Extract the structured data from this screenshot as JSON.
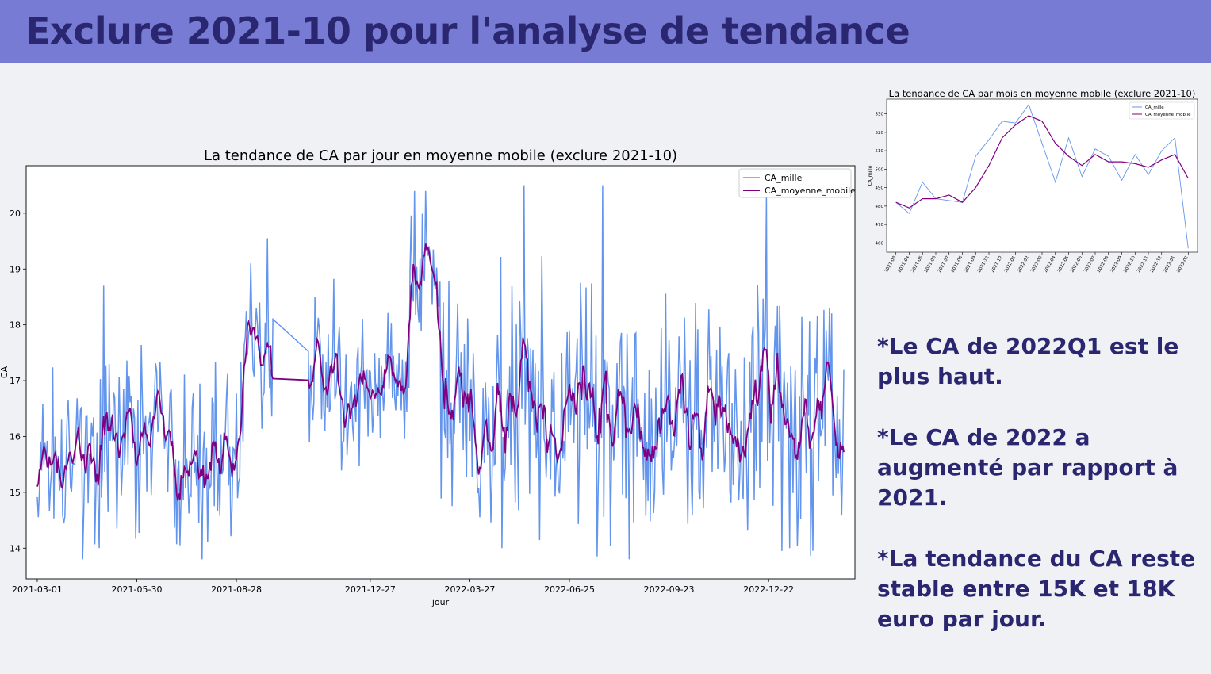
{
  "page": {
    "title": "Exclure 2021-10 pour l'analyse de tendance",
    "banner_color": "#777bd3",
    "title_color": "#2a2770",
    "notes": [
      "*Le CA de 2022Q1 est le plus haut.",
      "*Le CA de 2022 a augmenté par rapport à 2021.",
      "*La tendance du CA reste stable entre 15K et 18K euro par jour."
    ]
  },
  "chart_data": [
    {
      "type": "line",
      "title": "La tendance de CA par jour en moyenne mobile (exclure 2021-10)",
      "xlabel": "jour",
      "ylabel": "CA",
      "x_start": "2021-03-01",
      "x_end": "2023-02-28",
      "x_excluded": [
        "2021-10-01",
        "2021-10-31"
      ],
      "x_ticks": [
        "2021-03-01",
        "2021-05-30",
        "2021-08-28",
        "2021-12-27",
        "2022-03-27",
        "2022-06-25",
        "2022-09-23",
        "2022-12-22"
      ],
      "ylim": [
        13.45,
        20.85
      ],
      "y_ticks": [
        14,
        15,
        16,
        17,
        18,
        19,
        20
      ],
      "legend": "top-right",
      "grid": false,
      "series": [
        {
          "name": "CA_mille",
          "color": "#6495ed"
        },
        {
          "name": "CA_moyenne_mobile",
          "color": "#800080"
        }
      ],
      "daily_level_by_month": {
        "categories": [
          "2021-03",
          "2021-04",
          "2021-05",
          "2021-06",
          "2021-07",
          "2021-08",
          "2021-09",
          "2021-11",
          "2021-12",
          "2022-01",
          "2022-02",
          "2022-03",
          "2022-04",
          "2022-05",
          "2022-06",
          "2022-07",
          "2022-08",
          "2022-09",
          "2022-10",
          "2022-11",
          "2022-12",
          "2023-01",
          "2023-02"
        ],
        "values": [
          15.7,
          15.6,
          15.9,
          16.1,
          15.3,
          15.6,
          17.3,
          17.1,
          16.8,
          17.0,
          19.0,
          16.6,
          16.3,
          16.5,
          16.3,
          16.6,
          16.2,
          16.4,
          16.3,
          16.4,
          16.6,
          16.2,
          16.2
        ]
      },
      "daily_peaks": [
        {
          "date": "2021-04-30",
          "value": 18.7
        },
        {
          "date": "2021-09-10",
          "value": 19.1
        },
        {
          "date": "2021-09-25",
          "value": 19.55
        },
        {
          "date": "2022-02-05",
          "value": 20.4
        },
        {
          "date": "2022-02-15",
          "value": 20.4
        },
        {
          "date": "2022-05-15",
          "value": 20.5
        },
        {
          "date": "2022-07-25",
          "value": 20.5
        },
        {
          "date": "2022-12-20",
          "value": 20.3
        }
      ],
      "daily_troughs": [
        {
          "date": "2021-07-28",
          "value": 13.8
        },
        {
          "date": "2022-04-25",
          "value": 14.0
        },
        {
          "date": "2022-07-20",
          "value": 13.85
        },
        {
          "date": "2023-01-10",
          "value": 14.0
        }
      ]
    },
    {
      "type": "line",
      "title": "La tendance de CA par mois en moyenne mobile (exclure 2021-10)",
      "xlabel": "",
      "ylabel": "CA_mille",
      "ylim": [
        455,
        538
      ],
      "y_ticks": [
        460,
        470,
        480,
        490,
        500,
        510,
        520,
        530
      ],
      "legend": "top-right",
      "grid": false,
      "categories": [
        "2021-03",
        "2021-04",
        "2021-05",
        "2021-06",
        "2021-07",
        "2021-08",
        "2021-09",
        "2021-11",
        "2021-12",
        "2022-01",
        "2022-02",
        "2022-03",
        "2022-04",
        "2022-05",
        "2022-06",
        "2022-07",
        "2022-08",
        "2022-09",
        "2022-10",
        "2022-11",
        "2022-12",
        "2023-01",
        "2023-02"
      ],
      "series": [
        {
          "name": "CA_mille",
          "color": "#6495ed",
          "values": [
            482,
            476,
            493,
            484,
            483,
            482,
            507,
            516,
            526,
            525,
            535,
            514,
            493,
            517,
            496,
            511,
            507,
            494,
            508,
            497,
            510,
            517,
            457
          ]
        },
        {
          "name": "CA_moyenne_mobile",
          "color": "#800080",
          "values": [
            482,
            479,
            484,
            484,
            486,
            482,
            490,
            502,
            517,
            524,
            529,
            526,
            514,
            507,
            502,
            508,
            504,
            504,
            503,
            501,
            505,
            508,
            495
          ]
        }
      ]
    }
  ]
}
